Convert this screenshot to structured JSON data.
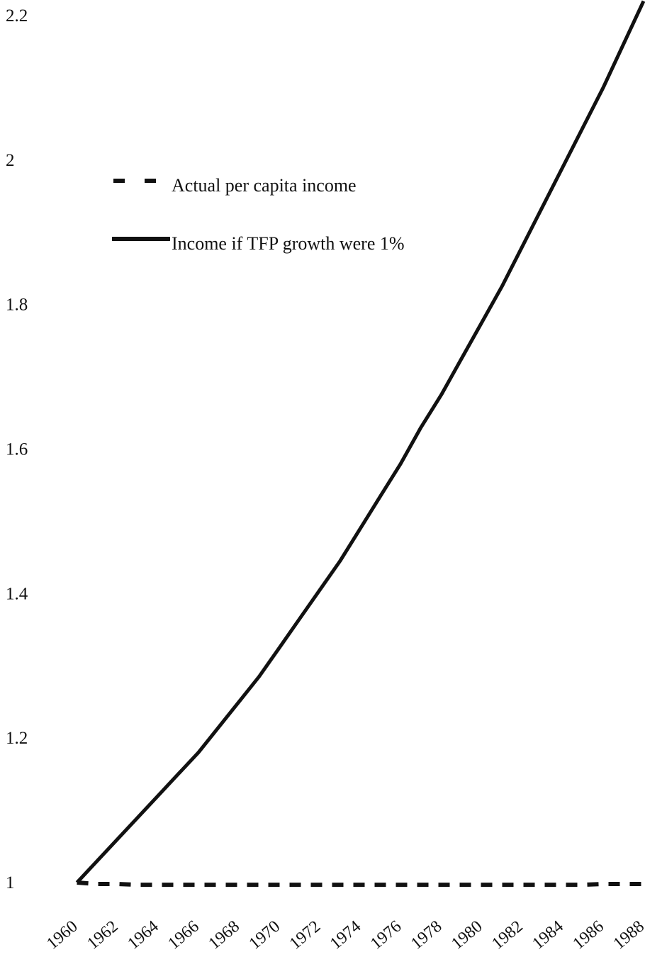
{
  "chart_data": {
    "type": "line",
    "title": "",
    "xlabel": "",
    "ylabel": "",
    "xlim": [
      1960,
      1989
    ],
    "ylim": [
      1,
      2.2
    ],
    "y_ticks": [
      {
        "value": 2.2,
        "label": "2.2"
      },
      {
        "value": 2.0,
        "label": "2"
      },
      {
        "value": 1.8,
        "label": "1.8"
      },
      {
        "value": 1.6,
        "label": "1.6"
      },
      {
        "value": 1.4,
        "label": "1.4"
      },
      {
        "value": 1.2,
        "label": "1.2"
      },
      {
        "value": 1.0,
        "label": "1"
      }
    ],
    "x_ticks": [
      "1960",
      "1962",
      "1964",
      "1966",
      "1968",
      "1970",
      "1972",
      "1974",
      "1976",
      "1978",
      "1980",
      "1982",
      "1984",
      "1986",
      "1988"
    ],
    "grid": false,
    "legend_position": "upper-left",
    "series": [
      {
        "name": "Actual per capita income",
        "style": "dashed",
        "color": "#111111",
        "x": [
          1961,
          1962,
          1963,
          1964,
          1965,
          1966,
          1967,
          1968,
          1969,
          1970,
          1971,
          1972,
          1973,
          1974,
          1975,
          1976,
          1977,
          1978,
          1979,
          1980,
          1981,
          1982,
          1983,
          1984,
          1985,
          1986,
          1987,
          1988,
          1989
        ],
        "y": [
          1.0,
          0.998,
          0.998,
          0.997,
          0.997,
          0.997,
          0.997,
          0.997,
          0.997,
          0.997,
          0.997,
          0.997,
          0.997,
          0.997,
          0.997,
          0.997,
          0.997,
          0.997,
          0.997,
          0.997,
          0.997,
          0.997,
          0.997,
          0.997,
          0.997,
          0.997,
          0.998,
          0.998,
          0.998
        ]
      },
      {
        "name": "Income if TFP growth were 1%",
        "style": "solid",
        "color": "#111111",
        "x": [
          1961,
          1962,
          1963,
          1964,
          1965,
          1966,
          1967,
          1968,
          1969,
          1970,
          1971,
          1972,
          1973,
          1974,
          1975,
          1976,
          1977,
          1978,
          1979,
          1980,
          1981,
          1982,
          1983,
          1984,
          1985,
          1986,
          1987,
          1988,
          1989
        ],
        "y": [
          1.0,
          1.03,
          1.06,
          1.09,
          1.12,
          1.15,
          1.18,
          1.215,
          1.25,
          1.285,
          1.325,
          1.365,
          1.405,
          1.445,
          1.49,
          1.535,
          1.58,
          1.63,
          1.675,
          1.725,
          1.775,
          1.825,
          1.88,
          1.935,
          1.99,
          2.045,
          2.1,
          2.16,
          2.22
        ]
      }
    ]
  }
}
